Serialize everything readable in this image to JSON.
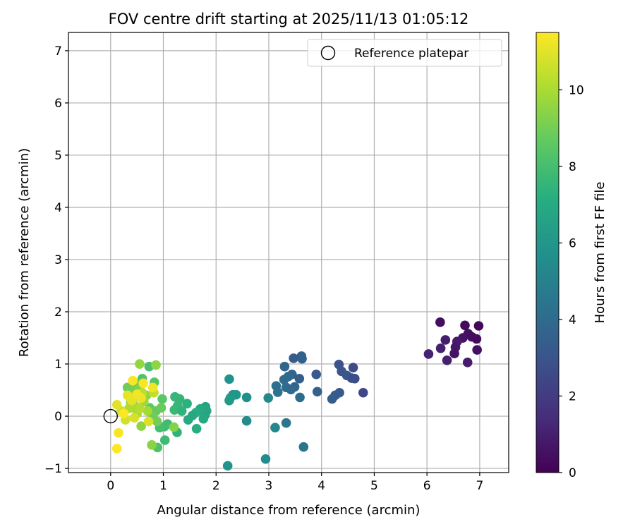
{
  "chart_data": {
    "type": "scatter",
    "title": "FOV centre drift starting at 2025/11/13 01:05:12",
    "xlabel": "Angular distance from reference (arcmin)",
    "ylabel": "Rotation from reference (arcmin)",
    "xlim": [
      -0.8,
      7.55
    ],
    "ylim": [
      -1.08,
      7.35
    ],
    "xticks": [
      0,
      1,
      2,
      3,
      4,
      5,
      6,
      7
    ],
    "yticks": [
      -1,
      0,
      1,
      2,
      3,
      4,
      5,
      6,
      7
    ],
    "grid": true,
    "legend": {
      "position": "top-right",
      "entries": [
        "Reference platepar"
      ]
    },
    "reference_point": {
      "x": 0,
      "y": 0,
      "label": "Reference platepar"
    },
    "colorbar": {
      "label": "Hours from first FF file",
      "colormap": "viridis",
      "range": [
        0,
        11.5
      ],
      "ticks": [
        0,
        2,
        4,
        6,
        8,
        10
      ]
    },
    "points": [
      {
        "x": 6.25,
        "y": 1.8,
        "h": 0.4
      },
      {
        "x": 6.72,
        "y": 1.74,
        "h": 0.3
      },
      {
        "x": 6.98,
        "y": 1.73,
        "h": 0.2
      },
      {
        "x": 6.78,
        "y": 1.58,
        "h": 0.5
      },
      {
        "x": 6.68,
        "y": 1.5,
        "h": 0.6
      },
      {
        "x": 6.85,
        "y": 1.52,
        "h": 0.4
      },
      {
        "x": 6.94,
        "y": 1.48,
        "h": 0.3
      },
      {
        "x": 6.35,
        "y": 1.46,
        "h": 0.9
      },
      {
        "x": 6.57,
        "y": 1.43,
        "h": 0.8
      },
      {
        "x": 6.54,
        "y": 1.32,
        "h": 0.7
      },
      {
        "x": 6.26,
        "y": 1.3,
        "h": 1.0
      },
      {
        "x": 6.95,
        "y": 1.27,
        "h": 0.5
      },
      {
        "x": 6.03,
        "y": 1.19,
        "h": 1.1
      },
      {
        "x": 6.52,
        "y": 1.2,
        "h": 0.6
      },
      {
        "x": 6.38,
        "y": 1.07,
        "h": 1.0
      },
      {
        "x": 6.77,
        "y": 1.03,
        "h": 0.9
      },
      {
        "x": 3.62,
        "y": 1.15,
        "h": 3.6
      },
      {
        "x": 3.63,
        "y": 1.1,
        "h": 3.5
      },
      {
        "x": 3.47,
        "y": 1.11,
        "h": 3.3
      },
      {
        "x": 3.3,
        "y": 0.95,
        "h": 3.8
      },
      {
        "x": 4.33,
        "y": 0.99,
        "h": 2.9
      },
      {
        "x": 4.6,
        "y": 0.93,
        "h": 2.6
      },
      {
        "x": 4.38,
        "y": 0.86,
        "h": 3.0
      },
      {
        "x": 3.9,
        "y": 0.8,
        "h": 3.2
      },
      {
        "x": 3.44,
        "y": 0.8,
        "h": 3.7
      },
      {
        "x": 3.37,
        "y": 0.76,
        "h": 3.9
      },
      {
        "x": 4.48,
        "y": 0.78,
        "h": 3.1
      },
      {
        "x": 4.57,
        "y": 0.73,
        "h": 2.8
      },
      {
        "x": 4.63,
        "y": 0.72,
        "h": 2.7
      },
      {
        "x": 3.58,
        "y": 0.72,
        "h": 3.4
      },
      {
        "x": 3.29,
        "y": 0.7,
        "h": 4.0
      },
      {
        "x": 3.14,
        "y": 0.58,
        "h": 4.2
      },
      {
        "x": 3.33,
        "y": 0.55,
        "h": 4.1
      },
      {
        "x": 3.49,
        "y": 0.56,
        "h": 3.8
      },
      {
        "x": 3.42,
        "y": 0.51,
        "h": 3.9
      },
      {
        "x": 3.17,
        "y": 0.46,
        "h": 4.3
      },
      {
        "x": 3.92,
        "y": 0.47,
        "h": 3.6
      },
      {
        "x": 4.34,
        "y": 0.45,
        "h": 3.2
      },
      {
        "x": 4.79,
        "y": 0.45,
        "h": 2.5
      },
      {
        "x": 4.26,
        "y": 0.4,
        "h": 3.3
      },
      {
        "x": 4.2,
        "y": 0.33,
        "h": 3.4
      },
      {
        "x": 3.59,
        "y": 0.36,
        "h": 4.0
      },
      {
        "x": 3.33,
        "y": -0.13,
        "h": 4.5
      },
      {
        "x": 3.66,
        "y": -0.59,
        "h": 4.4
      },
      {
        "x": 2.25,
        "y": 0.71,
        "h": 5.8
      },
      {
        "x": 2.32,
        "y": 0.41,
        "h": 5.9
      },
      {
        "x": 2.38,
        "y": 0.41,
        "h": 6.0
      },
      {
        "x": 2.27,
        "y": 0.35,
        "h": 6.1
      },
      {
        "x": 2.25,
        "y": 0.3,
        "h": 6.2
      },
      {
        "x": 2.58,
        "y": 0.36,
        "h": 5.7
      },
      {
        "x": 2.99,
        "y": 0.35,
        "h": 5.4
      },
      {
        "x": 2.58,
        "y": -0.09,
        "h": 5.6
      },
      {
        "x": 3.12,
        "y": -0.22,
        "h": 5.3
      },
      {
        "x": 2.94,
        "y": -0.82,
        "h": 5.5
      },
      {
        "x": 2.22,
        "y": -0.95,
        "h": 5.9
      },
      {
        "x": 1.8,
        "y": 0.18,
        "h": 6.6
      },
      {
        "x": 1.82,
        "y": 0.1,
        "h": 6.8
      },
      {
        "x": 1.79,
        "y": 0.02,
        "h": 6.7
      },
      {
        "x": 1.76,
        "y": -0.05,
        "h": 6.9
      },
      {
        "x": 1.7,
        "y": 0.14,
        "h": 7.0
      },
      {
        "x": 1.62,
        "y": 0.07,
        "h": 7.1
      },
      {
        "x": 1.55,
        "y": 0.01,
        "h": 6.9
      },
      {
        "x": 1.47,
        "y": -0.07,
        "h": 7.0
      },
      {
        "x": 1.63,
        "y": -0.24,
        "h": 7.2
      },
      {
        "x": 1.45,
        "y": 0.24,
        "h": 7.3
      },
      {
        "x": 1.31,
        "y": 0.33,
        "h": 7.5
      },
      {
        "x": 1.22,
        "y": 0.37,
        "h": 7.6
      },
      {
        "x": 1.27,
        "y": 0.2,
        "h": 7.6
      },
      {
        "x": 1.21,
        "y": 0.12,
        "h": 7.7
      },
      {
        "x": 1.35,
        "y": 0.1,
        "h": 7.4
      },
      {
        "x": 1.26,
        "y": -0.31,
        "h": 7.4
      },
      {
        "x": 1.08,
        "y": -0.15,
        "h": 7.8
      },
      {
        "x": 1.02,
        "y": -0.2,
        "h": 7.9
      },
      {
        "x": 1.03,
        "y": -0.46,
        "h": 7.8
      },
      {
        "x": 0.93,
        "y": -0.22,
        "h": 8.0
      },
      {
        "x": 0.89,
        "y": -0.6,
        "h": 8.2
      },
      {
        "x": 0.73,
        "y": 0.95,
        "h": 8.1
      },
      {
        "x": 0.6,
        "y": 0.72,
        "h": 8.3
      },
      {
        "x": 0.83,
        "y": 0.65,
        "h": 8.4
      },
      {
        "x": 0.98,
        "y": 0.33,
        "h": 8.5
      },
      {
        "x": 0.74,
        "y": 0.16,
        "h": 8.6
      },
      {
        "x": 0.86,
        "y": 0.1,
        "h": 8.7
      },
      {
        "x": 0.96,
        "y": 0.16,
        "h": 8.8
      },
      {
        "x": 0.8,
        "y": 0.0,
        "h": 8.9
      },
      {
        "x": 0.88,
        "y": -0.1,
        "h": 9.0
      },
      {
        "x": 0.32,
        "y": 0.55,
        "h": 8.9
      },
      {
        "x": 0.5,
        "y": 0.6,
        "h": 9.0
      },
      {
        "x": 0.45,
        "y": 0.5,
        "h": 9.1
      },
      {
        "x": 0.55,
        "y": 0.52,
        "h": 9.2
      },
      {
        "x": 1.2,
        "y": -0.21,
        "h": 9.3
      },
      {
        "x": 0.78,
        "y": -0.55,
        "h": 9.4
      },
      {
        "x": 0.86,
        "y": 0.98,
        "h": 9.5
      },
      {
        "x": 0.55,
        "y": 1.0,
        "h": 9.6
      },
      {
        "x": 0.4,
        "y": 0.38,
        "h": 9.4
      },
      {
        "x": 0.58,
        "y": -0.19,
        "h": 9.5
      },
      {
        "x": 0.68,
        "y": 0.4,
        "h": 9.6
      },
      {
        "x": 0.38,
        "y": 0.26,
        "h": 9.7
      },
      {
        "x": 0.63,
        "y": 0.28,
        "h": 9.8
      },
      {
        "x": 0.46,
        "y": 0.2,
        "h": 9.9
      },
      {
        "x": 0.7,
        "y": 0.1,
        "h": 9.9
      },
      {
        "x": 0.5,
        "y": 0.05,
        "h": 10.0
      },
      {
        "x": 0.35,
        "y": 0.15,
        "h": 10.1
      },
      {
        "x": 0.55,
        "y": 0.15,
        "h": 10.2
      },
      {
        "x": 0.6,
        "y": 0.45,
        "h": 10.3
      },
      {
        "x": 0.82,
        "y": 0.45,
        "h": 10.4
      },
      {
        "x": 0.44,
        "y": 0.35,
        "h": 10.5
      },
      {
        "x": 0.2,
        "y": 0.1,
        "h": 10.6
      },
      {
        "x": 0.28,
        "y": -0.07,
        "h": 10.7
      },
      {
        "x": 0.45,
        "y": -0.03,
        "h": 10.8
      },
      {
        "x": 0.72,
        "y": -0.1,
        "h": 10.9
      },
      {
        "x": 0.12,
        "y": 0.22,
        "h": 11.0
      },
      {
        "x": 0.32,
        "y": 0.4,
        "h": 11.1
      },
      {
        "x": 0.4,
        "y": 0.3,
        "h": 11.1
      },
      {
        "x": 0.58,
        "y": 0.35,
        "h": 11.2
      },
      {
        "x": 0.5,
        "y": 0.42,
        "h": 11.3
      },
      {
        "x": 0.8,
        "y": 0.55,
        "h": 11.3
      },
      {
        "x": 0.42,
        "y": 0.68,
        "h": 11.4
      },
      {
        "x": 0.62,
        "y": 0.63,
        "h": 11.4
      },
      {
        "x": 0.25,
        "y": 0.05,
        "h": 11.5
      },
      {
        "x": 0.15,
        "y": -0.32,
        "h": 11.4
      },
      {
        "x": 0.12,
        "y": -0.62,
        "h": 11.5
      }
    ]
  }
}
